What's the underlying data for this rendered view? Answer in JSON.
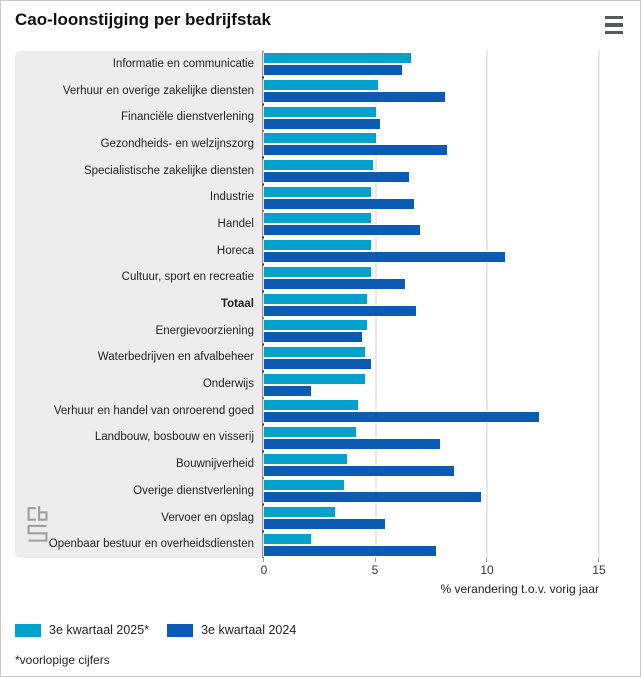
{
  "title": "Cao-loonstijging per bedrijfstak",
  "colors": {
    "series_2025": "#00a1cd",
    "series_2024": "#0b5bb5",
    "label_panel_bg": "#ececec",
    "axis_line": "#3f3f3f",
    "gridline": "#e8e8e8",
    "page_border": "#c9c9c9",
    "menu_icon": "#58595b",
    "logo_gray": "#9e9e9e"
  },
  "chart_data": {
    "type": "bar",
    "orientation": "horizontal",
    "title": "Cao-loonstijging per bedrijfstak",
    "xlabel": "% verandering t.o.v. vorig jaar",
    "xlim": [
      0,
      15
    ],
    "xticks": [
      0,
      5,
      10,
      15
    ],
    "grid": true,
    "legend_position": "bottom",
    "bold_category": "Totaal",
    "categories": [
      "Informatie en communicatie",
      "Verhuur en overige zakelijke diensten",
      "Financiële dienstverlening",
      "Gezondheids- en welzijnszorg",
      "Specialistische zakelijke diensten",
      "Industrie",
      "Handel",
      "Horeca",
      "Cultuur, sport en recreatie",
      "Totaal",
      "Energievoorziening",
      "Waterbedrijven en afvalbeheer",
      "Onderwijs",
      "Verhuur en handel van onroerend goed",
      "Landbouw, bosbouw en visserij",
      "Bouwnijverheid",
      "Overige dienstverlening",
      "Vervoer en opslag",
      "Openbaar bestuur en overheidsdiensten"
    ],
    "series": [
      {
        "name": "3e kwartaal 2025*",
        "color": "#00a1cd",
        "values": [
          6.6,
          5.1,
          5.0,
          5.0,
          4.9,
          4.8,
          4.8,
          4.8,
          4.8,
          4.6,
          4.6,
          4.5,
          4.5,
          4.2,
          4.1,
          3.7,
          3.6,
          3.2,
          2.1
        ]
      },
      {
        "name": "3e kwartaal 2024",
        "color": "#0b5bb5",
        "values": [
          6.2,
          8.1,
          5.2,
          8.2,
          6.5,
          6.7,
          7.0,
          10.8,
          6.3,
          6.8,
          4.4,
          4.8,
          2.1,
          12.3,
          7.9,
          8.5,
          9.7,
          5.4,
          7.7
        ]
      }
    ]
  },
  "axis": {
    "ticks": [
      "0",
      "5",
      "10",
      "15"
    ],
    "label": "% verandering t.o.v. vorig jaar"
  },
  "legend": [
    {
      "label": "3e kwartaal 2025*"
    },
    {
      "label": "3e kwartaal 2024"
    }
  ],
  "footnote": "*voorlopige cijfers",
  "logo": "cbs"
}
